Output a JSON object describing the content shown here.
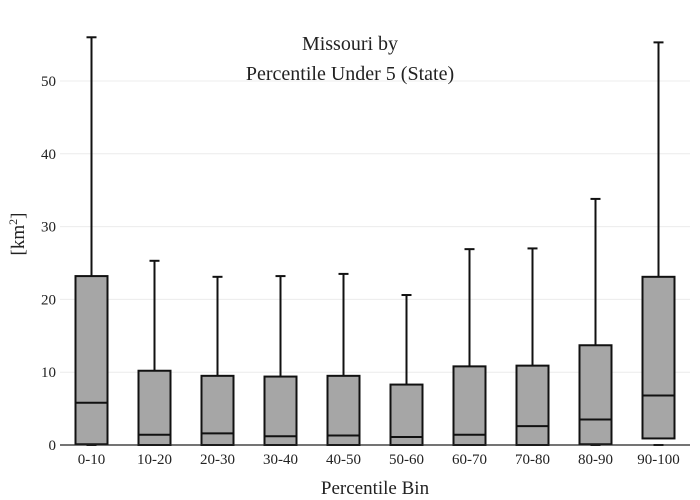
{
  "chart_data": {
    "type": "box",
    "title_lines": [
      "Missouri  by",
      "Percentile Under 5 (State)"
    ],
    "xlabel": "Percentile Bin",
    "ylabel": "[km",
    "ylabel_sup": "2",
    "ylabel_close": "]",
    "ylim": [
      0,
      57
    ],
    "yticks": [
      0,
      10,
      20,
      30,
      40,
      50
    ],
    "grid": true,
    "box_color": "#a6a6a6",
    "line_color": "#111111",
    "categories": [
      "0-10",
      "10-20",
      "20-30",
      "30-40",
      "40-50",
      "50-60",
      "60-70",
      "70-80",
      "80-90",
      "90-100"
    ],
    "boxes": [
      {
        "min": 0,
        "q1": 0.1,
        "median": 5.8,
        "q3": 23.2,
        "max": 56.0
      },
      {
        "min": 0,
        "q1": 0.0,
        "median": 1.4,
        "q3": 10.2,
        "max": 25.3
      },
      {
        "min": 0,
        "q1": 0.0,
        "median": 1.6,
        "q3": 9.5,
        "max": 23.1
      },
      {
        "min": 0,
        "q1": 0.0,
        "median": 1.2,
        "q3": 9.4,
        "max": 23.2
      },
      {
        "min": 0,
        "q1": 0.0,
        "median": 1.3,
        "q3": 9.5,
        "max": 23.5
      },
      {
        "min": 0,
        "q1": 0.0,
        "median": 1.1,
        "q3": 8.3,
        "max": 20.6
      },
      {
        "min": 0,
        "q1": 0.0,
        "median": 1.4,
        "q3": 10.8,
        "max": 26.9
      },
      {
        "min": 0,
        "q1": 0.0,
        "median": 2.6,
        "q3": 10.9,
        "max": 27.0
      },
      {
        "min": 0,
        "q1": 0.1,
        "median": 3.5,
        "q3": 13.7,
        "max": 33.8
      },
      {
        "min": 0,
        "q1": 0.9,
        "median": 6.8,
        "q3": 23.1,
        "max": 55.3
      }
    ]
  }
}
